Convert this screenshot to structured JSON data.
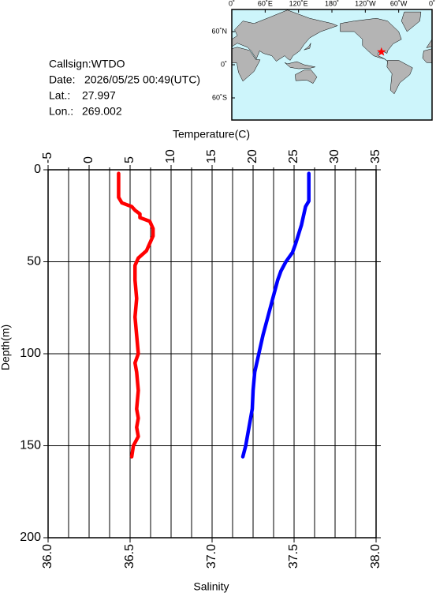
{
  "info": {
    "callsign": "Callsign:WTDO",
    "date_label": "Date:",
    "date": "2026/05/25 00:49(UTC)",
    "lat_label": "Lat.:",
    "lat": 27.997,
    "lon_label": "Lon.:",
    "lon": 269.002
  },
  "map": {
    "lon_labels": [
      "0˚",
      "60˚E",
      "120˚E",
      "180˚",
      "120˚W",
      "60˚W",
      "0˚"
    ],
    "lat_labels": [
      "60˚N",
      "0˚",
      "60˚S"
    ]
  },
  "chart_data": {
    "type": "line",
    "x2label": "Temperature(C)",
    "xlabel": "Salinity",
    "ylabel": "Depth(m)",
    "x2lim": [
      -5,
      35
    ],
    "x2ticks": [
      -5,
      0,
      5,
      10,
      15,
      20,
      25,
      30,
      35
    ],
    "x2minorticks": [
      -2.5,
      2.5,
      7.5,
      12.5,
      17.5,
      22.5,
      27.5,
      32.5
    ],
    "xlim": [
      36,
      38
    ],
    "xticks": [
      {
        "value": 36,
        "label": "36.0"
      },
      {
        "value": 36.5,
        "label": "36.5"
      },
      {
        "value": 37,
        "label": "37.0"
      },
      {
        "value": 37.5,
        "label": "37.5"
      },
      {
        "value": 38,
        "label": "38.0"
      }
    ],
    "ylim": [
      0,
      200
    ],
    "y_inverted": true,
    "yticks": [
      0,
      50,
      100,
      150,
      200
    ],
    "grid": true,
    "series": [
      {
        "color": "#ff0000",
        "axis": "x",
        "x": [
          36.43,
          36.43,
          36.43,
          36.45,
          36.51,
          36.53,
          36.56,
          36.56,
          36.62,
          36.64,
          36.64,
          36.62,
          36.6,
          36.55,
          36.53,
          36.53,
          36.54,
          36.53,
          36.54,
          36.55,
          36.53,
          36.54,
          36.55,
          36.54,
          36.55,
          36.54,
          36.55,
          36.52,
          36.51
        ],
        "y": [
          2,
          10,
          15,
          18,
          20,
          22,
          24,
          26,
          28,
          32,
          36,
          40,
          44,
          48,
          52,
          60,
          70,
          80,
          90,
          100,
          105,
          110,
          120,
          130,
          135,
          140,
          145,
          150,
          156
        ]
      },
      {
        "color": "#0000ff",
        "axis": "x2",
        "x": [
          26.8,
          26.8,
          26.8,
          26.4,
          25.9,
          25.2,
          24.8,
          24.0,
          23.4,
          23.0,
          22.4,
          21.8,
          21.2,
          20.7,
          20.2,
          20.0,
          19.9,
          19.5,
          19.1,
          18.75
        ],
        "y": [
          2,
          10,
          17,
          20,
          30,
          40,
          45,
          50,
          55,
          60,
          70,
          80,
          90,
          100,
          110,
          120,
          130,
          140,
          150,
          156
        ]
      }
    ]
  }
}
